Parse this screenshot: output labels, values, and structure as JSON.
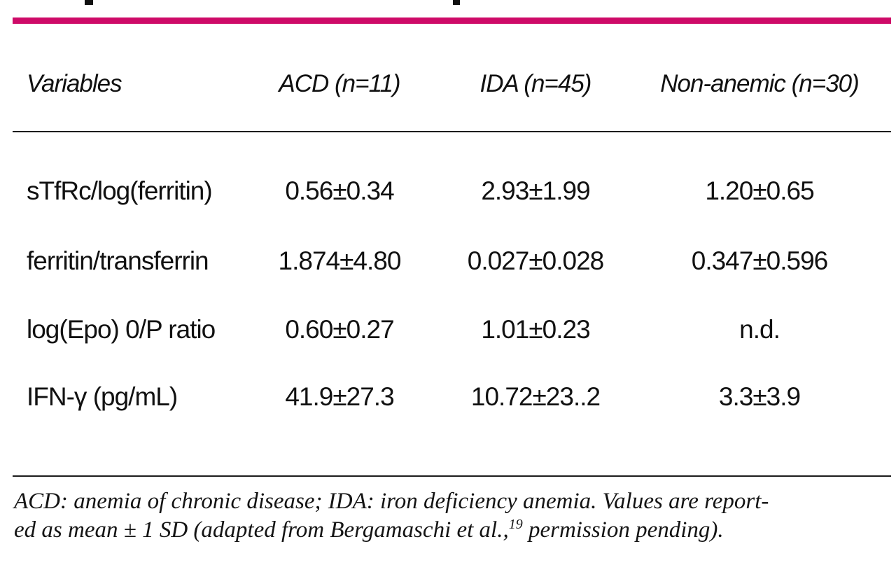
{
  "colors": {
    "accent_bar": "#ce0a68",
    "rule": "#1c1c1c",
    "text": "#111111",
    "background": "#ffffff"
  },
  "table": {
    "columns": [
      "Variables",
      "ACD (n=11)",
      "IDA (n=45)",
      "Non-anemic (n=30)"
    ],
    "rows": [
      {
        "label": "sTfRc/log(ferritin)",
        "values": [
          "0.56±0.34",
          "2.93±1.99",
          "1.20±0.65"
        ]
      },
      {
        "label": "ferritin/transferrin",
        "values": [
          "1.874±4.80",
          "0.027±0.028",
          "0.347±0.596"
        ]
      },
      {
        "label": "log(Epo) 0/P ratio",
        "values": [
          "0.60±0.27",
          "1.01±0.23",
          "n.d."
        ]
      },
      {
        "label": "IFN-γ (pg/mL)",
        "values": [
          "41.9±27.3",
          "10.72±23..2",
          "3.3±3.9"
        ]
      }
    ]
  },
  "footnote": {
    "line1": "ACD: anemia of chronic disease; IDA: iron deficiency anemia. Values are report-",
    "line2_before_sup": "ed as mean ± 1 SD (adapted from Bergamaschi et al.,",
    "superscript": "19",
    "line2_after_sup": " permission pending)."
  }
}
